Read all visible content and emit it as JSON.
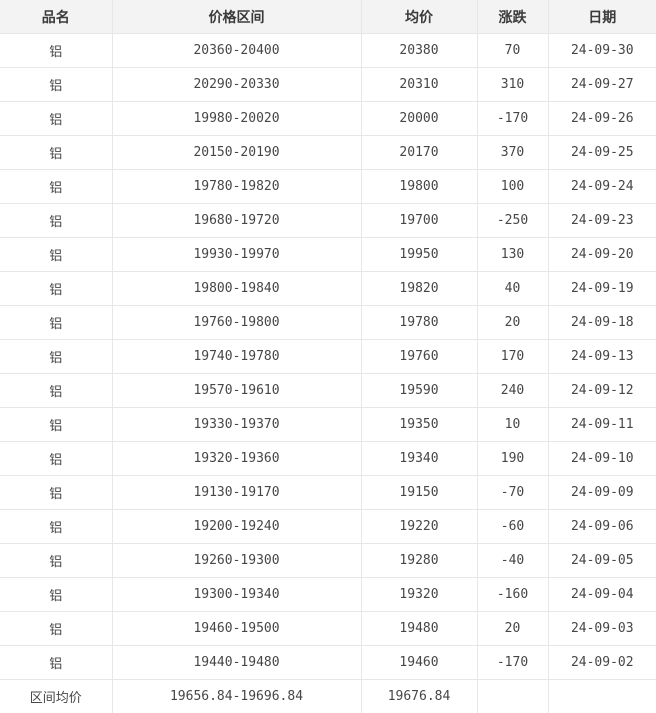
{
  "table": {
    "columns": [
      {
        "key": "product",
        "label": "品名"
      },
      {
        "key": "price_range",
        "label": "价格区间"
      },
      {
        "key": "avg_price",
        "label": "均价"
      },
      {
        "key": "change",
        "label": "涨跌"
      },
      {
        "key": "date",
        "label": "日期"
      }
    ],
    "rows": [
      [
        "铝",
        "20360-20400",
        "20380",
        "70",
        "24-09-30"
      ],
      [
        "铝",
        "20290-20330",
        "20310",
        "310",
        "24-09-27"
      ],
      [
        "铝",
        "19980-20020",
        "20000",
        "-170",
        "24-09-26"
      ],
      [
        "铝",
        "20150-20190",
        "20170",
        "370",
        "24-09-25"
      ],
      [
        "铝",
        "19780-19820",
        "19800",
        "100",
        "24-09-24"
      ],
      [
        "铝",
        "19680-19720",
        "19700",
        "-250",
        "24-09-23"
      ],
      [
        "铝",
        "19930-19970",
        "19950",
        "130",
        "24-09-20"
      ],
      [
        "铝",
        "19800-19840",
        "19820",
        "40",
        "24-09-19"
      ],
      [
        "铝",
        "19760-19800",
        "19780",
        "20",
        "24-09-18"
      ],
      [
        "铝",
        "19740-19780",
        "19760",
        "170",
        "24-09-13"
      ],
      [
        "铝",
        "19570-19610",
        "19590",
        "240",
        "24-09-12"
      ],
      [
        "铝",
        "19330-19370",
        "19350",
        "10",
        "24-09-11"
      ],
      [
        "铝",
        "19320-19360",
        "19340",
        "190",
        "24-09-10"
      ],
      [
        "铝",
        "19130-19170",
        "19150",
        "-70",
        "24-09-09"
      ],
      [
        "铝",
        "19200-19240",
        "19220",
        "-60",
        "24-09-06"
      ],
      [
        "铝",
        "19260-19300",
        "19280",
        "-40",
        "24-09-05"
      ],
      [
        "铝",
        "19300-19340",
        "19320",
        "-160",
        "24-09-04"
      ],
      [
        "铝",
        "19460-19500",
        "19480",
        "20",
        "24-09-03"
      ],
      [
        "铝",
        "19440-19480",
        "19460",
        "-170",
        "24-09-02"
      ]
    ],
    "footer": [
      "区间均价",
      "19656.84-19696.84",
      "19676.84",
      "",
      ""
    ]
  },
  "colors": {
    "header_bg": "#f3f3f3",
    "border": "#e7e7e7",
    "text": "#464646",
    "header_text": "#3b3b3b",
    "row_bg": "#ffffff"
  }
}
